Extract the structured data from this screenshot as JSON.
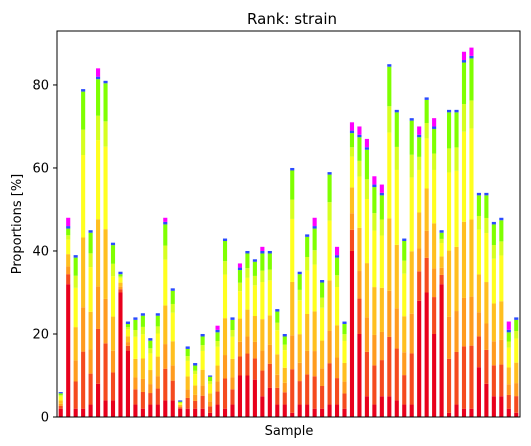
{
  "chart_data": {
    "type": "bar",
    "stacked": true,
    "title": "Rank: strain",
    "xlabel": "Sample",
    "ylabel": "Proportions [%]",
    "ylim": [
      0,
      93
    ],
    "yticks": [
      0,
      20,
      40,
      60,
      80
    ],
    "grid": false,
    "legend": "none",
    "colors": [
      "#e8001c",
      "#f54a1e",
      "#ff9b1f",
      "#ffbf1f",
      "#ffff1f",
      "#d6ff1f",
      "#7fff00",
      "#2a4bff",
      "#ff00ff"
    ],
    "totals": [
      6,
      48,
      39,
      79,
      45,
      84,
      81,
      42,
      35,
      23,
      24,
      25,
      19,
      25,
      48,
      31,
      4,
      17,
      13,
      20,
      10,
      22,
      43,
      24,
      37,
      40,
      38,
      41,
      40,
      26,
      20,
      60,
      35,
      44,
      48,
      33,
      59,
      41,
      23,
      71,
      70,
      67,
      58,
      56,
      85,
      74,
      43,
      72,
      70,
      77,
      72,
      45,
      74,
      74,
      88,
      89,
      54,
      54,
      47,
      48,
      23,
      24
    ],
    "tops": [
      0,
      2,
      0,
      0,
      0,
      2,
      0,
      0,
      0,
      0,
      0,
      0,
      0,
      0,
      1,
      0,
      0,
      0,
      0,
      0,
      0,
      1,
      0,
      0,
      1,
      0,
      0,
      1,
      0,
      0,
      0,
      0,
      0,
      0,
      2,
      0,
      0,
      2,
      0,
      2,
      2,
      2,
      2,
      2,
      0,
      0,
      0,
      0,
      2,
      0,
      2,
      0,
      0,
      0,
      2,
      2,
      0,
      0,
      0,
      0,
      2,
      0
    ],
    "reds": [
      2,
      32,
      2,
      2,
      3,
      8,
      4,
      4,
      30,
      16,
      3,
      2,
      3,
      3,
      4,
      4,
      2,
      2,
      2,
      2,
      1,
      3,
      2,
      3,
      10,
      10,
      9,
      5,
      7,
      3,
      3,
      1,
      3,
      3,
      2,
      2,
      3,
      3,
      2,
      40,
      20,
      5,
      3,
      5,
      5,
      4,
      3,
      3,
      28,
      30,
      20,
      32,
      1,
      3,
      2,
      2,
      12,
      8,
      5,
      5,
      2,
      1
    ]
  }
}
